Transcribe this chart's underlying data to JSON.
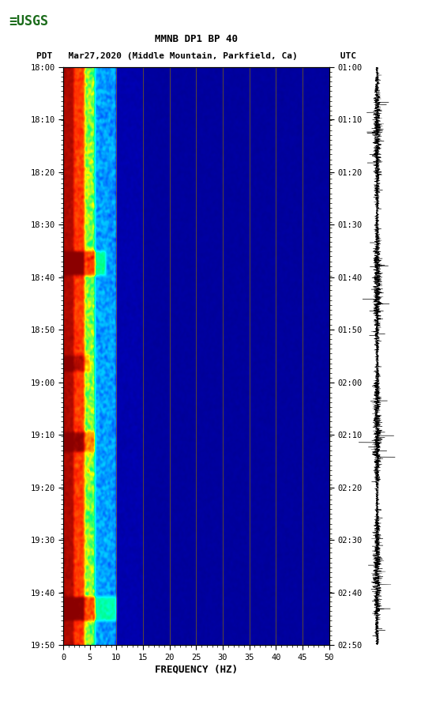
{
  "title_line1": "MMNB DP1 BP 40",
  "title_line2": "PDT   Mar27,2020 (Middle Mountain, Parkfield, Ca)        UTC",
  "xlabel": "FREQUENCY (HZ)",
  "freq_min": 0,
  "freq_max": 50,
  "time_labels_left": [
    "18:00",
    "18:10",
    "18:20",
    "18:30",
    "18:40",
    "18:50",
    "19:00",
    "19:10",
    "19:20",
    "19:30",
    "19:40",
    "19:50"
  ],
  "time_labels_right": [
    "01:00",
    "01:10",
    "01:20",
    "01:30",
    "01:40",
    "01:50",
    "02:00",
    "02:10",
    "02:20",
    "02:30",
    "02:40",
    "02:50"
  ],
  "freq_ticks": [
    0,
    5,
    10,
    15,
    20,
    25,
    30,
    35,
    40,
    45,
    50
  ],
  "n_time": 720,
  "n_freq": 250,
  "background_color": "#ffffff",
  "spectrogram_bg": "#00008B",
  "vertical_lines_color": "#8B7000",
  "vertical_lines_x": [
    10,
    15,
    20,
    25,
    30,
    35,
    40,
    45
  ],
  "noise_color": "#000000",
  "cmap_colors": [
    [
      0.0,
      "#000080"
    ],
    [
      0.1,
      "#0000CD"
    ],
    [
      0.2,
      "#0040FF"
    ],
    [
      0.3,
      "#00BFFF"
    ],
    [
      0.42,
      "#00FFFF"
    ],
    [
      0.55,
      "#00FF80"
    ],
    [
      0.65,
      "#FFFF00"
    ],
    [
      0.78,
      "#FF8000"
    ],
    [
      0.88,
      "#FF2000"
    ],
    [
      1.0,
      "#8B0000"
    ]
  ]
}
